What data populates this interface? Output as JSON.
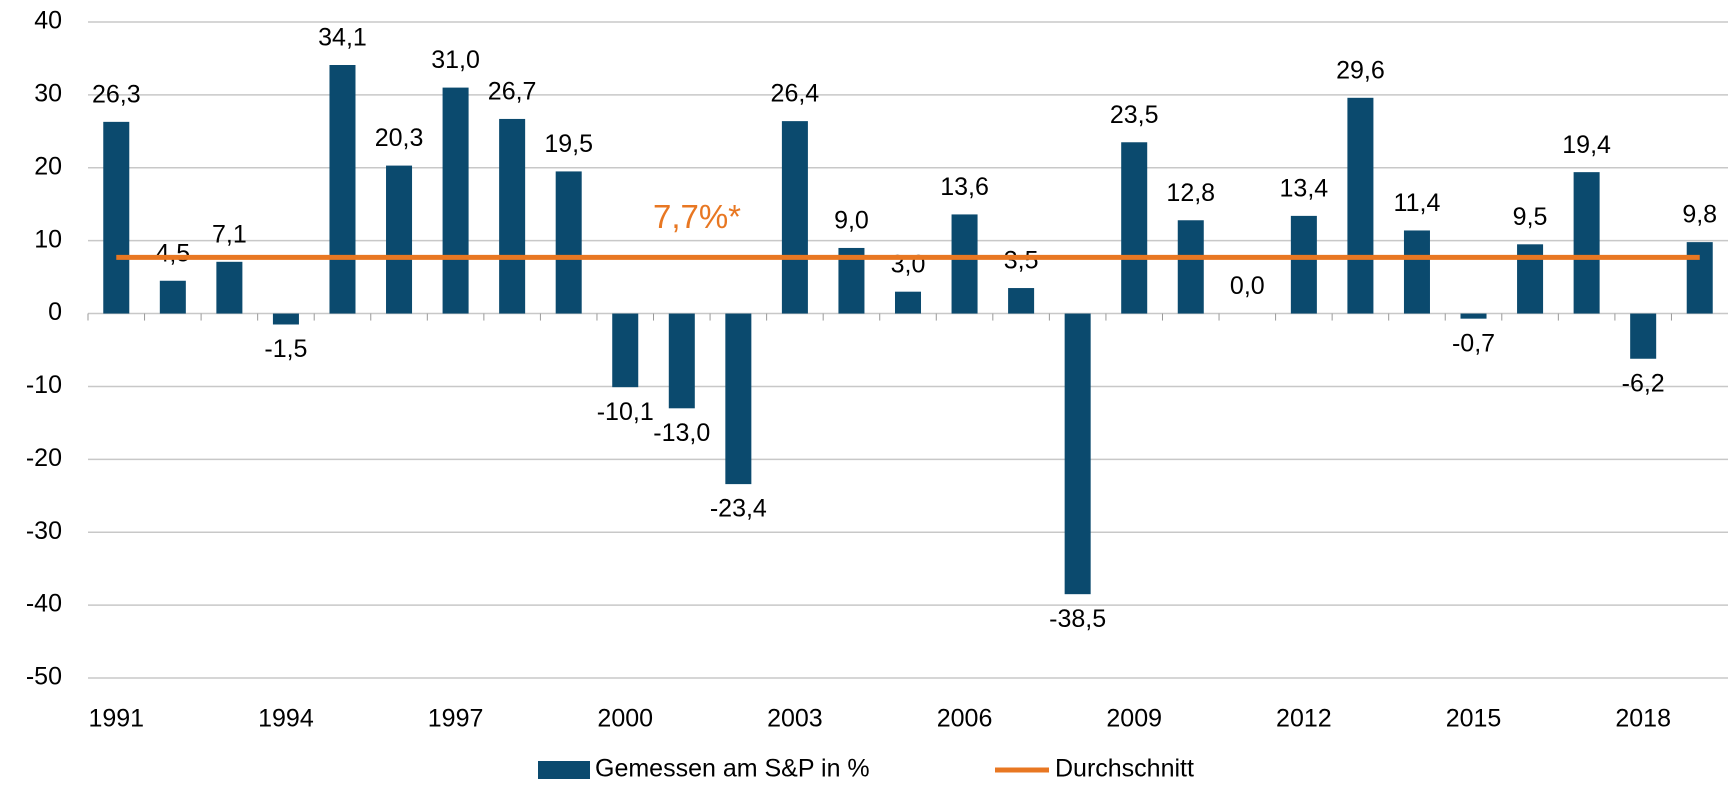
{
  "chart_data": {
    "type": "bar",
    "categories": [
      "1991",
      null,
      null,
      "1994",
      null,
      null,
      "1997",
      null,
      null,
      "2000",
      null,
      null,
      "2003",
      null,
      null,
      "2006",
      null,
      null,
      "2009",
      null,
      null,
      "2012",
      null,
      null,
      "2015",
      null,
      null,
      "2018",
      null
    ],
    "series": [
      {
        "name": "Gemessen am S&P in %",
        "type": "bar",
        "color": "#0b4a6e",
        "values": [
          26.3,
          4.5,
          7.1,
          -1.5,
          34.1,
          20.3,
          31.0,
          26.7,
          19.5,
          -10.1,
          -13.0,
          -23.4,
          26.4,
          9.0,
          3.0,
          13.6,
          3.5,
          -38.5,
          23.5,
          12.8,
          0.0,
          13.4,
          29.6,
          11.4,
          -0.7,
          9.5,
          19.4,
          -6.2,
          9.8
        ],
        "value_labels": [
          "26,3",
          "4,5",
          "7,1",
          "-1,5",
          "34,1",
          "20,3",
          "31,0",
          "26,7",
          "19,5",
          "-10,1",
          "-13,0",
          "-23,4",
          "26,4",
          "9,0",
          "3,0",
          "13,6",
          "3,5",
          "-38,5",
          "23,5",
          "12,8",
          "0,0",
          "13,4",
          "29,6",
          "11,4",
          "-0,7",
          "9,5",
          "19,4",
          "-6,2",
          "9,8"
        ]
      },
      {
        "name": "Durchschnitt",
        "type": "line",
        "color": "#e87722",
        "values": [
          7.7,
          7.7,
          7.7,
          7.7,
          7.7,
          7.7,
          7.7,
          7.7,
          7.7,
          7.7,
          7.7,
          7.7,
          7.7,
          7.7,
          7.7,
          7.7,
          7.7,
          7.7,
          7.7,
          7.7,
          7.7,
          7.7,
          7.7,
          7.7,
          7.7,
          7.7,
          7.7,
          7.7,
          7.7
        ]
      }
    ],
    "annotation": "7,7%*",
    "ylim": [
      -50,
      40
    ],
    "yticks": [
      -50,
      -40,
      -30,
      -20,
      -10,
      0,
      10,
      20,
      30,
      40
    ],
    "grid": true,
    "legend": "bottom"
  }
}
